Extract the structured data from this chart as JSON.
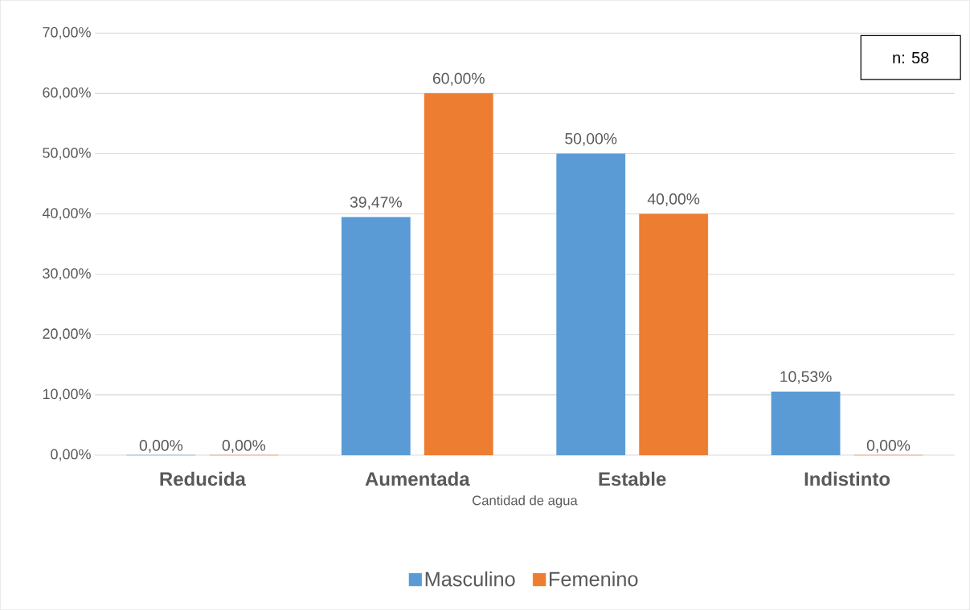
{
  "chart_data": {
    "type": "bar",
    "xlabel": "Cantidad de agua",
    "categories": [
      "Reducida",
      "Aumentada",
      "Estable",
      "Indistinto"
    ],
    "series": [
      {
        "name": "Masculino",
        "color": "#5b9bd5",
        "values": [
          0,
          39.47,
          50,
          10.53
        ],
        "value_labels": [
          "0,00%",
          "39,47%",
          "50,00%",
          "10,53%"
        ]
      },
      {
        "name": "Femenino",
        "color": "#ed7d31",
        "values": [
          0,
          60,
          40,
          0
        ],
        "value_labels": [
          "0,00%",
          "60,00%",
          "40,00%",
          "0,00%"
        ]
      }
    ],
    "ylim": [
      0,
      70
    ],
    "yticks": [
      {
        "value": 0,
        "label": "0,00%"
      },
      {
        "value": 10,
        "label": "10,00%"
      },
      {
        "value": 20,
        "label": "20,00%"
      },
      {
        "value": 30,
        "label": "30,00%"
      },
      {
        "value": 40,
        "label": "40,00%"
      },
      {
        "value": 50,
        "label": "50,00%"
      },
      {
        "value": 60,
        "label": "60,00%"
      },
      {
        "value": 70,
        "label": "70,00%"
      }
    ],
    "grid": "y",
    "legend": "bottom",
    "annotations": [
      "n: 58"
    ]
  }
}
